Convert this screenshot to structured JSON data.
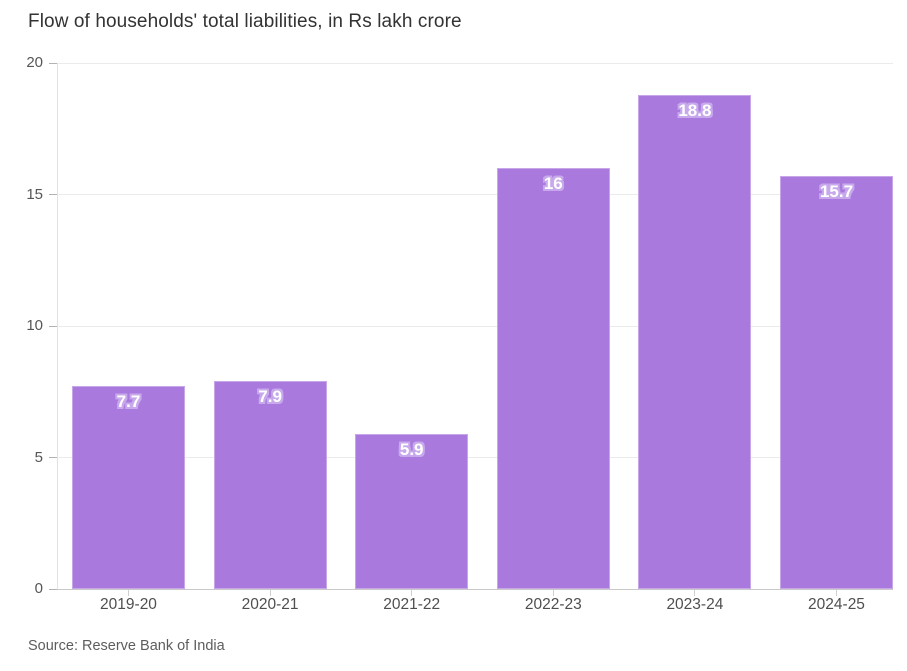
{
  "title": "Flow of households' total liabilities, in Rs lakh crore",
  "source": "Source: Reserve Bank of India",
  "colors": {
    "bar": "#a979de",
    "value_label_text": "#ffffff",
    "value_label_halo": "#c7a9ec",
    "gridline": "#ebebeb",
    "baseline": "#c9c9c9",
    "title_text": "#333333",
    "axis_text": "#4f4f4f",
    "source_text": "#5d5d5d",
    "background": "#ffffff"
  },
  "chart_data": {
    "type": "bar",
    "categories": [
      "2019-20",
      "2020-21",
      "2021-22",
      "2022-23",
      "2023-24",
      "2024-25"
    ],
    "values": [
      7.7,
      7.9,
      5.9,
      16,
      18.8,
      15.7
    ],
    "value_labels": [
      "7.7",
      "7.9",
      "5.9",
      "16",
      "18.8",
      "15.7"
    ],
    "title": "Flow of households' total liabilities, in Rs lakh crore",
    "xlabel": "",
    "ylabel": "",
    "ylim": [
      0,
      20
    ],
    "yticks": [
      0,
      5,
      10,
      15,
      20
    ],
    "grid": "horizontal",
    "legend": "none",
    "bar_color": "#a979de",
    "source": "Source: Reserve Bank of India"
  }
}
